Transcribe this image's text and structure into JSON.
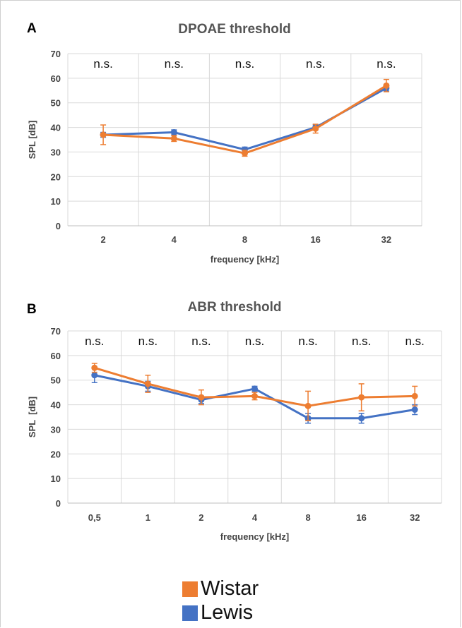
{
  "chart_data": [
    {
      "panel": "A",
      "type": "line",
      "title": "DPOAE threshold",
      "xlabel": "frequency [kHz]",
      "ylabel": "SPL [dB]",
      "ylim": [
        0,
        70
      ],
      "yticks": [
        0,
        10,
        20,
        30,
        40,
        50,
        60,
        70
      ],
      "categories": [
        "2",
        "4",
        "8",
        "16",
        "32"
      ],
      "annotations": [
        "n.s.",
        "n.s.",
        "n.s.",
        "n.s.",
        "n.s."
      ],
      "grid": true,
      "series": [
        {
          "name": "Wistar",
          "color": "#ed7d31",
          "values": [
            37,
            35.5,
            29.5,
            39.5,
            57
          ],
          "errors": [
            4,
            1.2,
            1.2,
            1.8,
            2.5
          ]
        },
        {
          "name": "Lewis",
          "color": "#4472c4",
          "values": [
            37,
            38,
            31,
            40,
            56
          ],
          "errors": [
            1,
            1,
            1,
            1,
            1.2
          ]
        }
      ]
    },
    {
      "panel": "B",
      "type": "line",
      "title": "ABR threshold",
      "xlabel": "frequency [kHz]",
      "ylabel": "SPL  [dB]",
      "ylim": [
        0,
        70
      ],
      "yticks": [
        0,
        10,
        20,
        30,
        40,
        50,
        60,
        70
      ],
      "categories": [
        "0,5",
        "1",
        "2",
        "4",
        "8",
        "16",
        "32"
      ],
      "annotations": [
        "n.s.",
        "n.s.",
        "n.s.",
        "n.s.",
        "n.s.",
        "n.s.",
        "n.s."
      ],
      "grid": true,
      "series": [
        {
          "name": "Wistar",
          "color": "#ed7d31",
          "values": [
            55,
            48.5,
            43,
            43.5,
            39.5,
            43,
            43.5
          ],
          "errors": [
            1.8,
            3.5,
            3,
            1.5,
            6,
            5.5,
            4
          ]
        },
        {
          "name": "Lewis",
          "color": "#4472c4",
          "values": [
            52,
            47.5,
            42,
            46.5,
            34.5,
            34.5,
            38
          ],
          "errors": [
            3,
            2,
            1.5,
            1,
            2,
            2,
            2
          ]
        }
      ]
    }
  ],
  "legend": {
    "items": [
      {
        "label": "Wistar",
        "color": "#ed7d31"
      },
      {
        "label": "Lewis",
        "color": "#4472c4"
      }
    ]
  }
}
